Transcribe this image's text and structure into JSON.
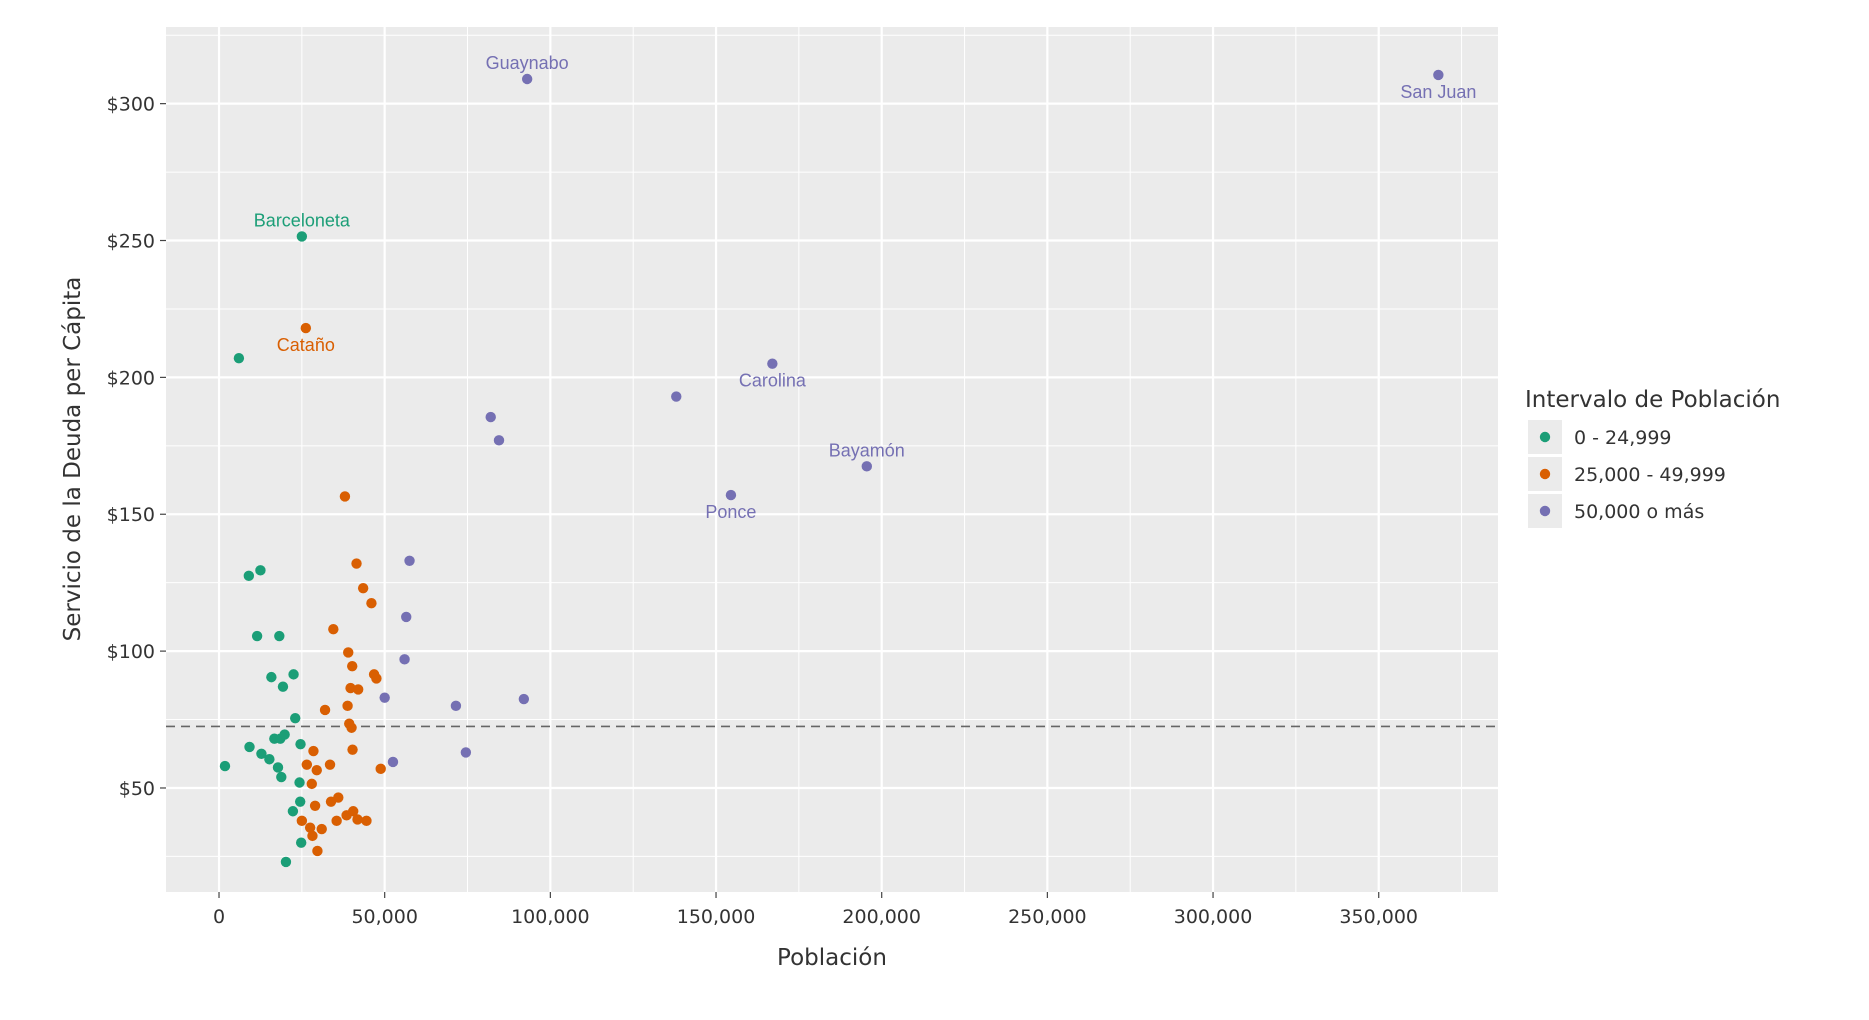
{
  "chart_data": {
    "type": "scatter",
    "xlabel": "Población",
    "ylabel": "Servicio de la Deuda per Cápita",
    "xlim": [
      -16000,
      386000
    ],
    "ylim": [
      12,
      328
    ],
    "x_ticks": [
      0,
      50000,
      100000,
      150000,
      200000,
      250000,
      300000,
      350000
    ],
    "x_tick_labels": [
      "0",
      "50,000",
      "100,000",
      "150,000",
      "200,000",
      "250,000",
      "300,000",
      "350,000"
    ],
    "y_ticks": [
      50,
      100,
      150,
      200,
      250,
      300
    ],
    "y_tick_labels": [
      "$50",
      "$100",
      "$150",
      "$200",
      "$250",
      "$300"
    ],
    "reference_line": {
      "y": 72.5,
      "style": "dashed",
      "color": "#666666"
    },
    "grid": true,
    "legend": {
      "title": "Intervalo de Población",
      "position": "right"
    },
    "series": [
      {
        "name": "0 - 24,999",
        "color": "#1b9e77",
        "points": [
          [
            1800,
            58
          ],
          [
            6000,
            207
          ],
          [
            9000,
            127.5
          ],
          [
            9200,
            65
          ],
          [
            11500,
            105.5
          ],
          [
            12500,
            129.5
          ],
          [
            12800,
            62.5
          ],
          [
            15200,
            60.5
          ],
          [
            15800,
            90.5
          ],
          [
            16700,
            68
          ],
          [
            17800,
            57.5
          ],
          [
            18200,
            105.5
          ],
          [
            18500,
            68
          ],
          [
            18800,
            54
          ],
          [
            19300,
            87
          ],
          [
            19800,
            69.5
          ],
          [
            20200,
            23
          ],
          [
            22300,
            41.5
          ],
          [
            22500,
            91.5
          ],
          [
            23000,
            75.5
          ],
          [
            24300,
            52
          ],
          [
            24500,
            45
          ],
          [
            24600,
            66
          ],
          [
            24800,
            30
          ],
          [
            25000,
            251.5
          ]
        ]
      },
      {
        "name": "25,000 - 49,999",
        "color": "#d95f02",
        "points": [
          [
            25000,
            38
          ],
          [
            26200,
            218
          ],
          [
            26500,
            58.5
          ],
          [
            27500,
            35.5
          ],
          [
            28000,
            51.5
          ],
          [
            28200,
            32.5
          ],
          [
            28500,
            63.5
          ],
          [
            29000,
            43.5
          ],
          [
            29500,
            56.5
          ],
          [
            29700,
            27
          ],
          [
            31000,
            35
          ],
          [
            32000,
            78.5
          ],
          [
            33500,
            58.5
          ],
          [
            33800,
            45
          ],
          [
            34500,
            108
          ],
          [
            35500,
            38
          ],
          [
            36000,
            46.5
          ],
          [
            38000,
            156.5
          ],
          [
            38500,
            40
          ],
          [
            38800,
            80
          ],
          [
            39000,
            99.5
          ],
          [
            39300,
            73.5
          ],
          [
            39700,
            86.5
          ],
          [
            40000,
            72
          ],
          [
            40200,
            94.5
          ],
          [
            40300,
            64
          ],
          [
            40500,
            41.5
          ],
          [
            41500,
            132
          ],
          [
            41800,
            38.5
          ],
          [
            42000,
            86
          ],
          [
            43500,
            123
          ],
          [
            44500,
            38
          ],
          [
            46000,
            117.5
          ],
          [
            46800,
            91.5
          ],
          [
            47500,
            90
          ],
          [
            48800,
            57
          ]
        ]
      },
      {
        "name": "50,000 o más",
        "color": "#7570b3",
        "points": [
          [
            50000,
            83
          ],
          [
            52500,
            59.5
          ],
          [
            56000,
            97
          ],
          [
            56500,
            112.5
          ],
          [
            57500,
            133
          ],
          [
            71500,
            80
          ],
          [
            74500,
            63
          ],
          [
            82000,
            185.5
          ],
          [
            84500,
            177
          ],
          [
            92000,
            82.5
          ],
          [
            93000,
            309
          ],
          [
            138000,
            193
          ],
          [
            154500,
            157
          ],
          [
            167000,
            205
          ],
          [
            195500,
            167.5
          ],
          [
            368000,
            310.5
          ]
        ]
      }
    ],
    "annotations": [
      {
        "text": "Guaynabo",
        "x": 93000,
        "y": 309,
        "position": "above",
        "color": "#7570b3"
      },
      {
        "text": "San Juan",
        "x": 368000,
        "y": 310.5,
        "position": "below",
        "color": "#7570b3"
      },
      {
        "text": "Barceloneta",
        "x": 25000,
        "y": 251.5,
        "position": "above",
        "color": "#1b9e77"
      },
      {
        "text": "Cataño",
        "x": 26200,
        "y": 218,
        "position": "below",
        "color": "#d95f02"
      },
      {
        "text": "Carolina",
        "x": 167000,
        "y": 205,
        "position": "below",
        "color": "#7570b3"
      },
      {
        "text": "Bayamón",
        "x": 195500,
        "y": 167.5,
        "position": "above",
        "color": "#7570b3"
      },
      {
        "text": "Ponce",
        "x": 154500,
        "y": 157,
        "position": "below",
        "color": "#7570b3"
      }
    ]
  }
}
